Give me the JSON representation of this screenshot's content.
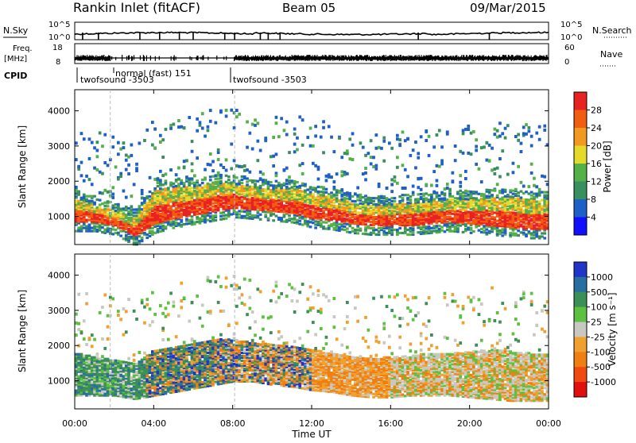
{
  "header": {
    "station": "Rankin Inlet (fitACF)",
    "beam": "Beam 05",
    "date": "09/Mar/2015"
  },
  "noise_panel": {
    "left_label": "N.Sky",
    "right_label": "N.Search",
    "left_ticks": [
      "10^5",
      "10^0"
    ],
    "right_ticks": [
      "10^5",
      "10^0"
    ]
  },
  "freq_panel": {
    "left_label_top": "Freq.",
    "left_label_bottom": "[MHz]",
    "right_label": "Nave",
    "left_ticks": [
      "18",
      "8"
    ],
    "right_ticks": [
      "60",
      "0"
    ]
  },
  "cpid": {
    "label": "CPID",
    "segments": [
      "twofsound -3503",
      "normal (fast) 151",
      "twofsound -3503"
    ]
  },
  "range_axis": {
    "label": "Slant Range [km]",
    "ticks": [
      "1000",
      "2000",
      "3000",
      "4000"
    ]
  },
  "time_axis": {
    "label": "Time UT",
    "ticks": [
      "00:00",
      "04:00",
      "08:00",
      "12:00",
      "16:00",
      "20:00",
      "00:00"
    ]
  },
  "power_scale": {
    "label": "Power [dB]",
    "ticks": [
      "4",
      "8",
      "12",
      "16",
      "20",
      "24",
      "28"
    ],
    "colors": [
      "#1010ff",
      "#1f5fc8",
      "#3a8f5f",
      "#55b04a",
      "#e5d92a",
      "#f09a22",
      "#f25d12",
      "#e82222"
    ]
  },
  "velocity_scale": {
    "label": "Velocity [m s⁻¹]",
    "ticks": [
      "1000",
      "500",
      "100",
      "25",
      "-25",
      "-100",
      "-500",
      "-1000"
    ],
    "colors": [
      "#2035c8",
      "#2a6ea0",
      "#3d8f57",
      "#5cc040",
      "#c8c8c0",
      "#f0a030",
      "#ef7f10",
      "#f04a10",
      "#e01010"
    ]
  },
  "chart_data": {
    "type": "heatmap",
    "x_range": [
      "00:00",
      "24:00"
    ],
    "y_range_km": [
      200,
      4600
    ],
    "power_band_km": [
      [
        0,
        800,
        1450
      ],
      [
        1,
        800,
        1300
      ],
      [
        2,
        700,
        1100
      ],
      [
        3,
        400,
        900
      ],
      [
        4,
        750,
        1700
      ],
      [
        5,
        900,
        1800
      ],
      [
        6,
        1000,
        1800
      ],
      [
        7,
        1100,
        1900
      ],
      [
        8,
        1200,
        1900
      ],
      [
        9,
        1150,
        1800
      ],
      [
        10,
        1100,
        1750
      ],
      [
        11,
        1050,
        1750
      ],
      [
        12,
        900,
        1600
      ],
      [
        13,
        850,
        1500
      ],
      [
        14,
        750,
        1350
      ],
      [
        15,
        700,
        1300
      ],
      [
        16,
        700,
        1300
      ],
      [
        17,
        700,
        1350
      ],
      [
        18,
        750,
        1400
      ],
      [
        19,
        800,
        1450
      ],
      [
        20,
        750,
        1450
      ],
      [
        21,
        700,
        1500
      ],
      [
        22,
        650,
        1500
      ],
      [
        23,
        600,
        1450
      ],
      [
        24,
        600,
        1450
      ]
    ],
    "velocity_band_km": [
      [
        0,
        700,
        1600
      ],
      [
        1,
        700,
        1500
      ],
      [
        2,
        700,
        1400
      ],
      [
        3,
        600,
        1300
      ],
      [
        4,
        700,
        1700
      ],
      [
        5,
        800,
        1800
      ],
      [
        6,
        900,
        1900
      ],
      [
        7,
        1000,
        2000
      ],
      [
        8,
        1100,
        2000
      ],
      [
        9,
        1100,
        1900
      ],
      [
        10,
        1000,
        1850
      ],
      [
        11,
        950,
        1800
      ],
      [
        12,
        850,
        1700
      ],
      [
        13,
        800,
        1600
      ],
      [
        14,
        700,
        1500
      ],
      [
        15,
        650,
        1450
      ],
      [
        16,
        650,
        1500
      ],
      [
        17,
        700,
        1550
      ],
      [
        18,
        700,
        1600
      ],
      [
        19,
        700,
        1600
      ],
      [
        20,
        650,
        1650
      ],
      [
        21,
        600,
        1700
      ],
      [
        22,
        550,
        1650
      ],
      [
        23,
        550,
        1600
      ],
      [
        24,
        550,
        1600
      ]
    ]
  }
}
